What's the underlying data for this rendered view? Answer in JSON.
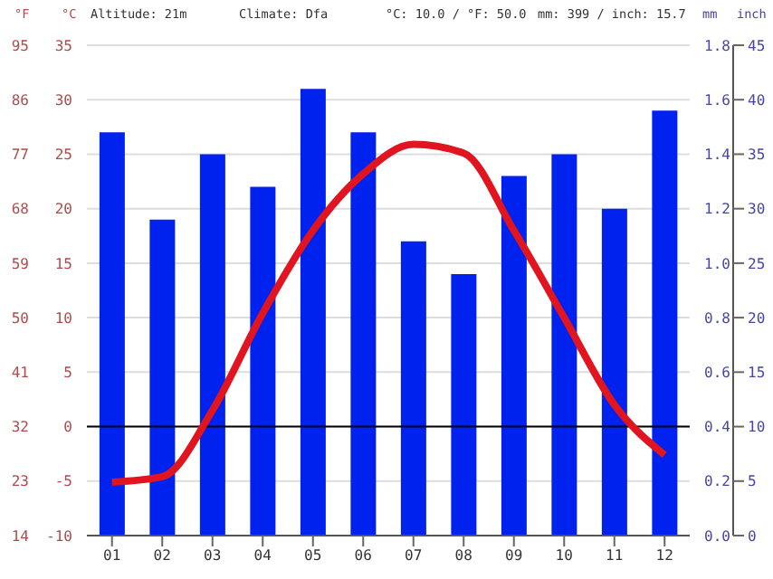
{
  "chart_data": {
    "type": "bar",
    "ylabel": "°C",
    "y3label": "°F",
    "y2label": "mm",
    "annotations": [
      "Altitude: 21m",
      "Climate: Dfa",
      "°C: 10.0 / °F: 50.0",
      "mm: 399 / inch: 15.7",
      "inch",
      "0.0",
      "0.2",
      "0.4",
      "0.6",
      "0.8",
      "1.0",
      "1.2",
      "1.4",
      "1.6",
      "1.8"
    ],
    "categories": [
      "01",
      "02",
      "03",
      "04",
      "05",
      "06",
      "07",
      "08",
      "09",
      "10",
      "11",
      "12"
    ],
    "series": [
      {
        "axis": "y2",
        "color": "#0022ee",
        "values": [
          37,
          29,
          35,
          32,
          41,
          37,
          27,
          24,
          33,
          35,
          30,
          39
        ]
      },
      {
        "type": "line",
        "axis": "y",
        "color": "#e0151f",
        "values": [
          -5.1,
          -4.6,
          1.5,
          10.4,
          18.0,
          23.2,
          25.9,
          25.1,
          18.0,
          10.0,
          2.0,
          -2.6
        ]
      }
    ],
    "ylim": [
      -10,
      35
    ],
    "yticks": [
      -10,
      -5,
      0,
      5,
      10,
      15,
      20,
      25,
      30,
      35
    ],
    "y3lim": [
      14,
      95
    ],
    "y3ticks": [
      14,
      23,
      32,
      41,
      50,
      59,
      68,
      77,
      86,
      95
    ],
    "y2lim": [
      0,
      45
    ],
    "y2ticks": [
      0,
      5,
      10,
      15,
      20,
      25,
      30,
      35,
      40,
      45
    ],
    "ref_lines": [
      {
        "axis": "y",
        "value": 0,
        "color": "#000000"
      }
    ],
    "grid": "y",
    "legend": false,
    "marker": "none",
    "line_style": "solid"
  }
}
